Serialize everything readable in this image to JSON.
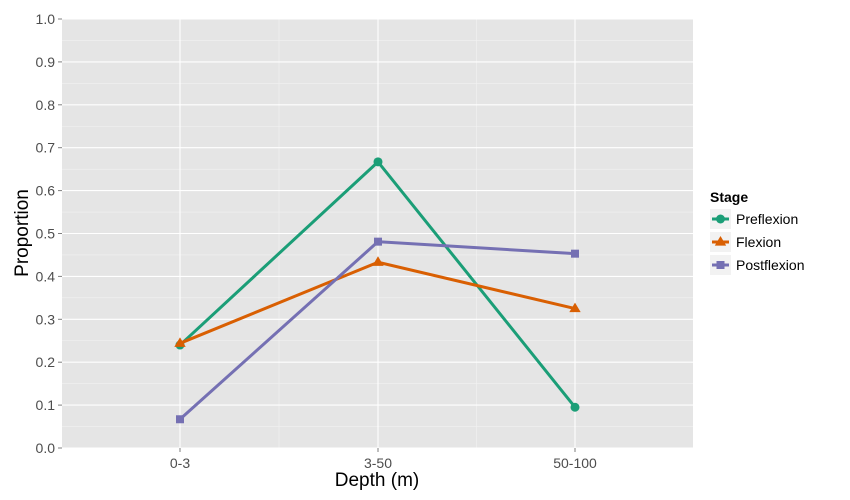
{
  "chart_data": {
    "type": "line",
    "xlabel": "Depth (m)",
    "ylabel": "Proportion",
    "categories": [
      "0-3",
      "3-50",
      "50-100"
    ],
    "ylim": [
      0,
      1
    ],
    "y_ticks": [
      "0.0",
      "0.1",
      "0.2",
      "0.3",
      "0.4",
      "0.5",
      "0.6",
      "0.7",
      "0.8",
      "0.9",
      "1.0"
    ],
    "grid": true,
    "legend": {
      "title": "Stage",
      "position": "right"
    },
    "series": [
      {
        "name": "Preflexion",
        "color": "#1b9e77",
        "marker": "circle",
        "values": [
          0.24,
          0.667,
          0.095
        ]
      },
      {
        "name": "Flexion",
        "color": "#d95f02",
        "marker": "triangle",
        "values": [
          0.244,
          0.433,
          0.325
        ]
      },
      {
        "name": "Postflexion",
        "color": "#7570b3",
        "marker": "square",
        "values": [
          0.067,
          0.481,
          0.453
        ]
      }
    ]
  }
}
